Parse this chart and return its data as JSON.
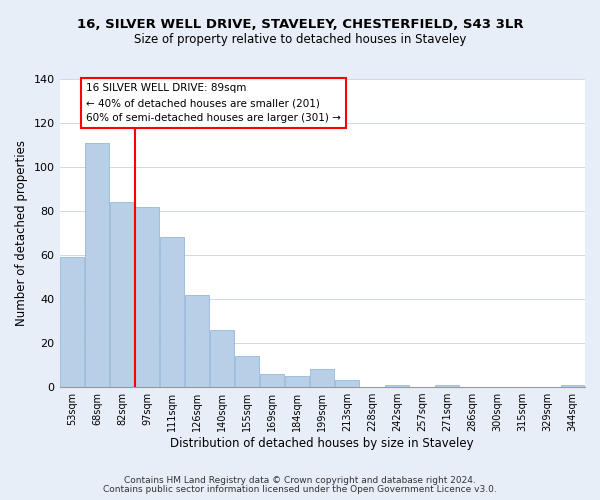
{
  "title": "16, SILVER WELL DRIVE, STAVELEY, CHESTERFIELD, S43 3LR",
  "subtitle": "Size of property relative to detached houses in Staveley",
  "xlabel": "Distribution of detached houses by size in Staveley",
  "ylabel": "Number of detached properties",
  "bin_labels": [
    "53sqm",
    "68sqm",
    "82sqm",
    "97sqm",
    "111sqm",
    "126sqm",
    "140sqm",
    "155sqm",
    "169sqm",
    "184sqm",
    "199sqm",
    "213sqm",
    "228sqm",
    "242sqm",
    "257sqm",
    "271sqm",
    "286sqm",
    "300sqm",
    "315sqm",
    "329sqm",
    "344sqm"
  ],
  "bar_heights": [
    59,
    111,
    84,
    82,
    68,
    42,
    26,
    14,
    6,
    5,
    8,
    3,
    0,
    1,
    0,
    1,
    0,
    0,
    0,
    0,
    1
  ],
  "bar_color": "#b8cfe8",
  "annotation_line1": "16 SILVER WELL DRIVE: 89sqm",
  "annotation_line2": "← 40% of detached houses are smaller (201)",
  "annotation_line3": "60% of semi-detached houses are larger (301) →",
  "footer1": "Contains HM Land Registry data © Crown copyright and database right 2024.",
  "footer2": "Contains public sector information licensed under the Open Government Licence v3.0.",
  "ylim": [
    0,
    140
  ],
  "yticks": [
    0,
    20,
    40,
    60,
    80,
    100,
    120,
    140
  ],
  "background_color": "#e8eef8",
  "plot_background": "#ffffff",
  "red_line_index": 2.5
}
